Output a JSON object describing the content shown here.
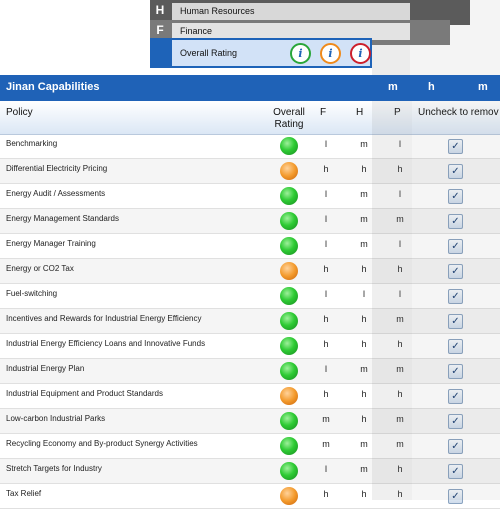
{
  "tabs": [
    {
      "letter": "H",
      "label": "Human Resources"
    },
    {
      "letter": "F",
      "label": "Finance"
    },
    {
      "label": "Overall Rating"
    }
  ],
  "title": "Jinan Capabilities",
  "title_cols": [
    "m",
    "h",
    "m"
  ],
  "header": {
    "policy": "Policy",
    "overall_line1": "Overall",
    "overall_line2": "Rating",
    "f": "F",
    "h": "H",
    "p": "P",
    "uncheck": "Uncheck to remov"
  },
  "colors": {
    "brand": "#1f62b7",
    "good": "#2ecb34",
    "medium": "#f39a2c",
    "poor": "#cc1f2c"
  },
  "rows": [
    {
      "policy": "Benchmarking",
      "rating": "green",
      "f": "l",
      "h": "m",
      "p": "l",
      "checked": "✓"
    },
    {
      "policy": "Differential Electricity Pricing",
      "rating": "orange",
      "f": "h",
      "h": "h",
      "p": "h",
      "checked": "✓"
    },
    {
      "policy": "Energy Audit / Assessments",
      "rating": "green",
      "f": "l",
      "h": "m",
      "p": "l",
      "checked": "✓"
    },
    {
      "policy": "Energy Management Standards",
      "rating": "green",
      "f": "l",
      "h": "m",
      "p": "m",
      "checked": "✓"
    },
    {
      "policy": "Energy Manager Training",
      "rating": "green",
      "f": "l",
      "h": "m",
      "p": "l",
      "checked": "✓"
    },
    {
      "policy": "Energy or CO2 Tax",
      "rating": "orange",
      "f": "h",
      "h": "h",
      "p": "h",
      "checked": "✓"
    },
    {
      "policy": "Fuel-switching",
      "rating": "green",
      "f": "l",
      "h": "l",
      "p": "l",
      "checked": "✓"
    },
    {
      "policy": "Incentives and Rewards for Industrial Energy Efficiency",
      "rating": "green",
      "f": "h",
      "h": "h",
      "p": "m",
      "checked": "✓"
    },
    {
      "policy": "Industrial Energy Efficiency Loans and Innovative Funds",
      "rating": "green",
      "f": "h",
      "h": "h",
      "p": "h",
      "checked": "✓"
    },
    {
      "policy": "Industrial Energy Plan",
      "rating": "green",
      "f": "l",
      "h": "m",
      "p": "m",
      "checked": "✓"
    },
    {
      "policy": "Industrial Equipment and Product Standards",
      "rating": "orange",
      "f": "h",
      "h": "h",
      "p": "h",
      "checked": "✓"
    },
    {
      "policy": "Low-carbon Industrial Parks",
      "rating": "green",
      "f": "m",
      "h": "h",
      "p": "m",
      "checked": "✓"
    },
    {
      "policy": "Recycling Economy and By-product Synergy Activities",
      "rating": "green",
      "f": "m",
      "h": "m",
      "p": "m",
      "checked": "✓"
    },
    {
      "policy": "Stretch Targets for Industry",
      "rating": "green",
      "f": "l",
      "h": "m",
      "p": "h",
      "checked": "✓"
    },
    {
      "policy": "Tax Relief",
      "rating": "orange",
      "f": "h",
      "h": "h",
      "p": "h",
      "checked": "✓"
    }
  ]
}
